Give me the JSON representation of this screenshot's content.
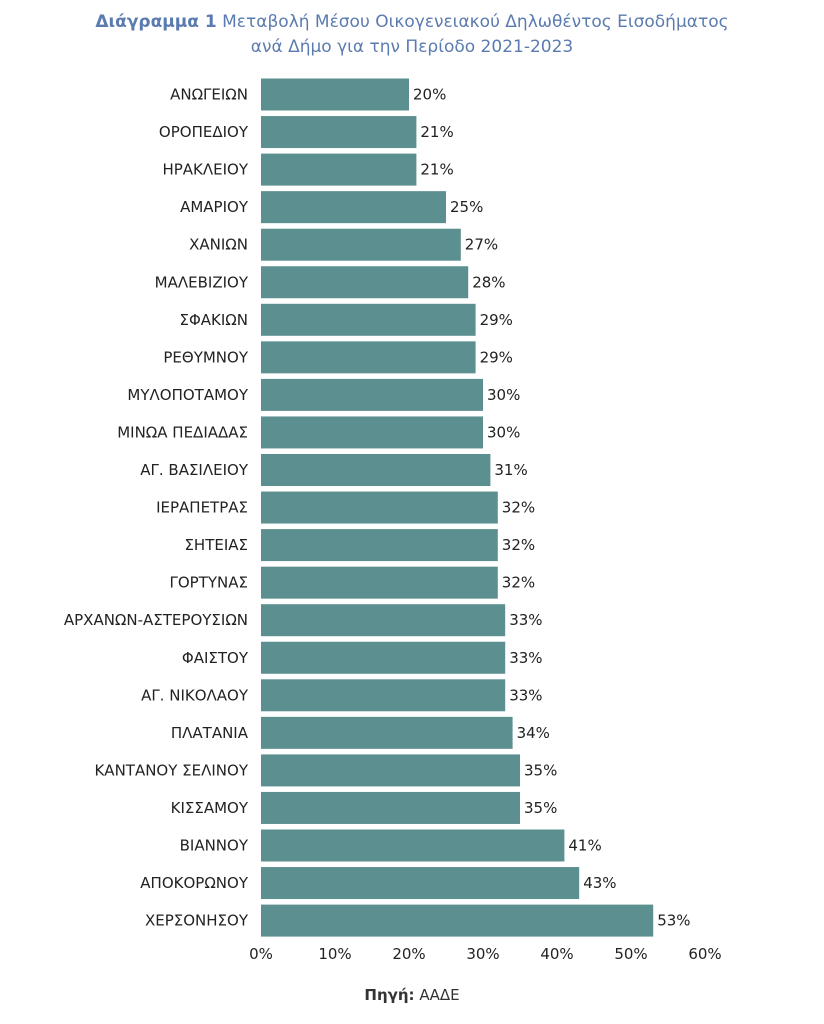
{
  "title": {
    "prefix": "Διάγραμμα 1",
    "line1": "Μεταβολή Μέσου Οικογενειακού Δηλωθέντος Εισοδήματος",
    "line2": "ανά Δήμο για την Περίοδο 2021-2023"
  },
  "source": {
    "label": "Πηγή:",
    "value": "ΑΑΔΕ"
  },
  "colors": {
    "bar": "#5c8f8f",
    "title": "#5b7bb0",
    "text": "#222222"
  },
  "chart_data": {
    "type": "bar",
    "orientation": "horizontal",
    "categories": [
      "ΑΝΩΓΕΙΩΝ",
      "ΟΡΟΠΕΔΙΟΥ",
      "ΗΡΑΚΛΕΙΟΥ",
      "ΑΜΑΡΙΟΥ",
      "ΧΑΝΙΩΝ",
      "ΜΑΛΕΒΙΖΙΟΥ",
      "ΣΦΑΚΙΩΝ",
      "ΡΕΘΥΜΝΟΥ",
      "ΜΥΛΟΠΟΤΑΜΟΥ",
      "ΜΙΝΩΑ ΠΕΔΙΑΔΑΣ",
      "ΑΓ. ΒΑΣΙΛΕΙΟΥ",
      "ΙΕΡΑΠΕΤΡΑΣ",
      "ΣΗΤΕΙΑΣ",
      "ΓΟΡΤΥΝΑΣ",
      "ΑΡΧΑΝΩΝ-ΑΣΤΕΡΟΥΣΙΩΝ",
      "ΦΑΙΣΤΟΥ",
      "ΑΓ. ΝΙΚΟΛΑΟΥ",
      "ΠΛΑΤΑΝΙΑ",
      "ΚΑΝΤΑΝΟΥ ΣΕΛΙΝΟΥ",
      "ΚΙΣΣΑΜΟΥ",
      "ΒΙΑΝΝΟΥ",
      "ΑΠΟΚΟΡΩΝΟΥ",
      "ΧΕΡΣΟΝΗΣΟΥ"
    ],
    "values": [
      20,
      21,
      21,
      25,
      27,
      28,
      29,
      29,
      30,
      30,
      31,
      32,
      32,
      32,
      33,
      33,
      33,
      34,
      35,
      35,
      41,
      43,
      53
    ],
    "value_labels": [
      "20%",
      "21%",
      "21%",
      "25%",
      "27%",
      "28%",
      "29%",
      "29%",
      "30%",
      "30%",
      "31%",
      "32%",
      "32%",
      "32%",
      "33%",
      "33%",
      "33%",
      "34%",
      "35%",
      "35%",
      "41%",
      "43%",
      "53%"
    ],
    "xlim": [
      0,
      60
    ],
    "xticks": [
      "0%",
      "10%",
      "20%",
      "30%",
      "40%",
      "50%",
      "60%"
    ],
    "xlabel": "",
    "ylabel": "",
    "grid": false,
    "legend": false
  }
}
